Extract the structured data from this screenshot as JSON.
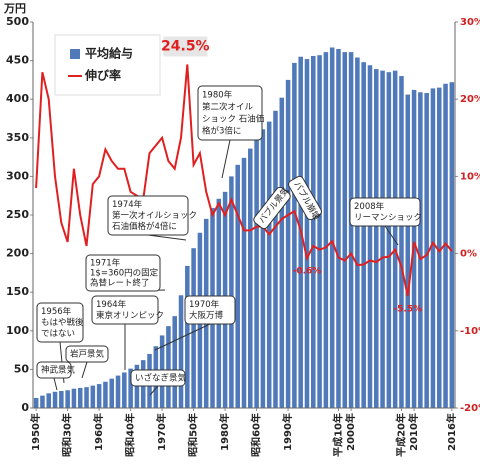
{
  "chart_data": {
    "type": "bar-line",
    "y_label": "万円",
    "x": [
      1950,
      1951,
      1952,
      1953,
      1954,
      1955,
      1956,
      1957,
      1958,
      1959,
      1960,
      1961,
      1962,
      1963,
      1964,
      1965,
      1966,
      1967,
      1968,
      1969,
      1970,
      1971,
      1972,
      1973,
      1974,
      1975,
      1976,
      1977,
      1978,
      1979,
      1980,
      1981,
      1982,
      1983,
      1984,
      1985,
      1986,
      1987,
      1988,
      1989,
      1990,
      1991,
      1992,
      1993,
      1994,
      1995,
      1996,
      1997,
      1998,
      1999,
      2000,
      2001,
      2002,
      2003,
      2004,
      2005,
      2006,
      2007,
      2008,
      2009,
      2010,
      2011,
      2012,
      2013,
      2014,
      2015,
      2016
    ],
    "xlim": [
      1949.5,
      2016.5
    ],
    "xticks": [
      {
        "value": 1950,
        "label": "1950年"
      },
      {
        "value": 1955,
        "label": "昭和30年"
      },
      {
        "value": 1960,
        "label": "1960年"
      },
      {
        "value": 1965,
        "label": "昭和40年"
      },
      {
        "value": 1970,
        "label": "1970年"
      },
      {
        "value": 1975,
        "label": "昭和50年"
      },
      {
        "value": 1980,
        "label": "1980年"
      },
      {
        "value": 1985,
        "label": "昭和60年"
      },
      {
        "value": 1990,
        "label": "1990年"
      },
      {
        "value": 1998,
        "label": "平成10年"
      },
      {
        "value": 2000,
        "label": "2000年"
      },
      {
        "value": 2008,
        "label": "平成20年"
      },
      {
        "value": 2010,
        "label": "2010年"
      },
      {
        "value": 2016,
        "label": "2016年"
      }
    ],
    "ylim": [
      0,
      500
    ],
    "yticks": [
      0,
      50,
      100,
      150,
      200,
      250,
      300,
      350,
      400,
      450,
      500
    ],
    "y2lim": [
      -20,
      30
    ],
    "y2ticks": [
      {
        "value": -20,
        "label": "-20%"
      },
      {
        "value": -10,
        "label": "-10%"
      },
      {
        "value": 0,
        "label": "0%"
      },
      {
        "value": 10,
        "label": "10%"
      },
      {
        "value": 20,
        "label": "20%"
      },
      {
        "value": 30,
        "label": "30%"
      }
    ],
    "series": [
      {
        "name": "平均給与",
        "color": "#4f79b8",
        "values": [
          13,
          16,
          19,
          21,
          22,
          23,
          25,
          26,
          27,
          29,
          31,
          34,
          38,
          42,
          46,
          51,
          56,
          62,
          70,
          80,
          94,
          106,
          119,
          146,
          184,
          207,
          227,
          245,
          259,
          271,
          280,
          300,
          315,
          324,
          336,
          352,
          361,
          371,
          385,
          402,
          425,
          447,
          455,
          452,
          456,
          457,
          461,
          467,
          465,
          461,
          461,
          454,
          448,
          444,
          439,
          437,
          435,
          437,
          430,
          406,
          412,
          409,
          408,
          414,
          415,
          420,
          422
        ]
      },
      {
        "name": "伸び率",
        "color": "#e02020",
        "axis": "y2",
        "values": [
          8.5,
          23.5,
          20,
          10,
          4,
          1.5,
          11,
          5,
          1,
          9,
          10,
          13.5,
          12,
          11,
          11,
          8,
          7.5,
          7,
          13,
          14,
          15,
          12,
          11,
          15,
          24.5,
          11.5,
          13,
          8,
          5,
          6.5,
          5,
          7,
          5,
          3,
          3,
          3.5,
          3.5,
          2.5,
          3.5,
          4.5,
          5,
          5.5,
          3,
          -0.6,
          1,
          0.5,
          0.8,
          1.6,
          -0.5,
          -0.9,
          0,
          -1.5,
          -1.4,
          -0.9,
          -1.1,
          -0.5,
          -0.4,
          0.5,
          -1.7,
          -5.5,
          1.5,
          -0.7,
          -0.2,
          1.4,
          0.3,
          1.3,
          0.3
        ],
        "value_labels": [
          null,
          null,
          null,
          null,
          null,
          null,
          null,
          null,
          null,
          null,
          null,
          null,
          null,
          null,
          null,
          null,
          null,
          null,
          null,
          null,
          null,
          null,
          null,
          null,
          "24.5%",
          null,
          null,
          null,
          null,
          null,
          null,
          null,
          null,
          null,
          null,
          null,
          null,
          null,
          null,
          null,
          null,
          null,
          null,
          "-0.6%",
          null,
          null,
          null,
          null,
          null,
          null,
          null,
          null,
          null,
          null,
          null,
          null,
          null,
          null,
          null,
          "-5.5%",
          null,
          null,
          null,
          null,
          null,
          null,
          null
        ]
      }
    ],
    "annotations": [
      [
        "1980年",
        "第二次オイル",
        "ショック 石油価",
        "格が3倍に"
      ],
      [
        "1974年",
        "第一次オイルショック",
        "石油価格が4倍に"
      ],
      [
        "1971年",
        "1$=360円の固定",
        "為替レート終了"
      ],
      [
        "1964年",
        "東京オリンピック"
      ],
      [
        "1970年",
        "大阪万博"
      ],
      [
        "1956年",
        "もはや戦後",
        "ではない"
      ],
      [
        "岩戸景気"
      ],
      [
        "神武景気"
      ],
      [
        "いざなぎ景気"
      ],
      [
        "2008年",
        "リーマンショック"
      ],
      [
        "バブル景気"
      ],
      [
        "バブル崩壊"
      ]
    ]
  }
}
